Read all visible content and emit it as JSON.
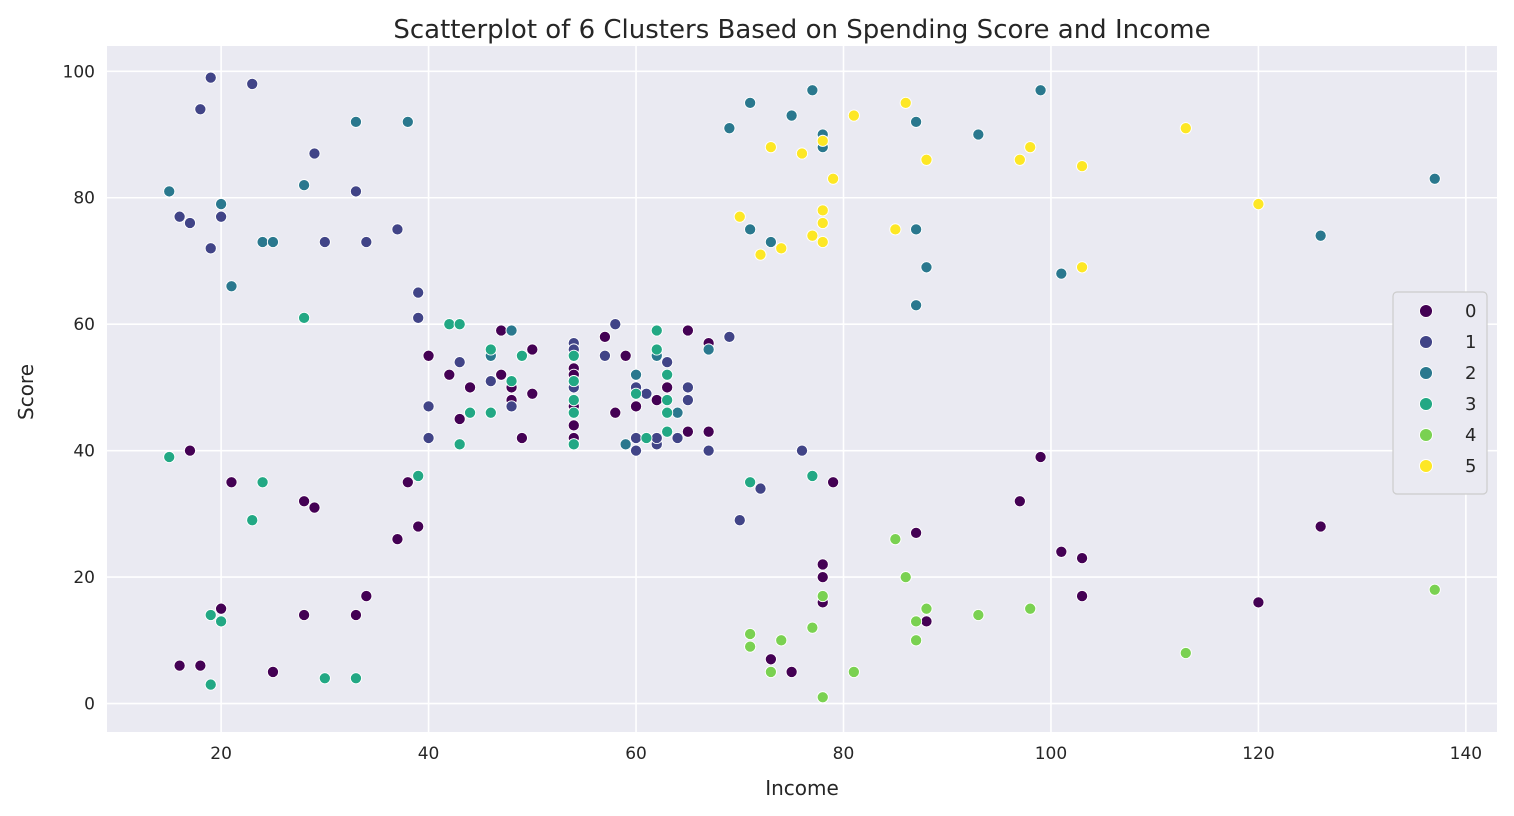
{
  "chart_data": {
    "type": "scatter",
    "title": "Scatterplot of 6 Clusters Based on Spending Score and Income",
    "xlabel": "Income",
    "ylabel": "Score",
    "xlim": [
      9,
      143
    ],
    "ylim": [
      -4.5,
      104
    ],
    "xticks": [
      20,
      40,
      60,
      80,
      100,
      120,
      140
    ],
    "yticks": [
      0,
      20,
      40,
      60,
      80,
      100
    ],
    "grid": true,
    "legend_placement": "center-right",
    "background": "#eaeaf2",
    "series": [
      {
        "name": "0",
        "color": "#440154",
        "points": [
          [
            16,
            6
          ],
          [
            17,
            40
          ],
          [
            18,
            6
          ],
          [
            20,
            15
          ],
          [
            21,
            35
          ],
          [
            25,
            5
          ],
          [
            28,
            14
          ],
          [
            28,
            32
          ],
          [
            29,
            31
          ],
          [
            33,
            14
          ],
          [
            34,
            17
          ],
          [
            37,
            26
          ],
          [
            38,
            35
          ],
          [
            39,
            28
          ],
          [
            40,
            55
          ],
          [
            42,
            52
          ],
          [
            43,
            45
          ],
          [
            44,
            50
          ],
          [
            47,
            52
          ],
          [
            47,
            59
          ],
          [
            48,
            48
          ],
          [
            48,
            50
          ],
          [
            48,
            47
          ],
          [
            49,
            42
          ],
          [
            50,
            49
          ],
          [
            50,
            56
          ],
          [
            54,
            53
          ],
          [
            54,
            52
          ],
          [
            54,
            44
          ],
          [
            54,
            42
          ],
          [
            54,
            41
          ],
          [
            54,
            51
          ],
          [
            54,
            47
          ],
          [
            57,
            58
          ],
          [
            58,
            46
          ],
          [
            59,
            55
          ],
          [
            60,
            47
          ],
          [
            62,
            48
          ],
          [
            63,
            50
          ],
          [
            65,
            59
          ],
          [
            65,
            43
          ],
          [
            67,
            57
          ],
          [
            67,
            43
          ],
          [
            73,
            7
          ],
          [
            75,
            5
          ],
          [
            78,
            16
          ],
          [
            78,
            22
          ],
          [
            78,
            20
          ],
          [
            79,
            35
          ],
          [
            87,
            27
          ],
          [
            88,
            13
          ],
          [
            97,
            32
          ],
          [
            99,
            39
          ],
          [
            101,
            24
          ],
          [
            103,
            23
          ],
          [
            103,
            17
          ],
          [
            120,
            16
          ],
          [
            126,
            28
          ]
        ]
      },
      {
        "name": "1",
        "color": "#414487",
        "points": [
          [
            16,
            77
          ],
          [
            17,
            76
          ],
          [
            18,
            94
          ],
          [
            19,
            99
          ],
          [
            19,
            72
          ],
          [
            20,
            77
          ],
          [
            23,
            98
          ],
          [
            29,
            87
          ],
          [
            30,
            73
          ],
          [
            33,
            81
          ],
          [
            34,
            73
          ],
          [
            37,
            75
          ],
          [
            39,
            65
          ],
          [
            39,
            61
          ],
          [
            40,
            47
          ],
          [
            40,
            42
          ],
          [
            43,
            54
          ],
          [
            46,
            51
          ],
          [
            48,
            47
          ],
          [
            54,
            57
          ],
          [
            54,
            56
          ],
          [
            54,
            50
          ],
          [
            57,
            55
          ],
          [
            58,
            60
          ],
          [
            60,
            50
          ],
          [
            60,
            42
          ],
          [
            60,
            40
          ],
          [
            61,
            49
          ],
          [
            62,
            41
          ],
          [
            62,
            42
          ],
          [
            63,
            54
          ],
          [
            64,
            42
          ],
          [
            65,
            50
          ],
          [
            65,
            48
          ],
          [
            67,
            40
          ],
          [
            69,
            58
          ],
          [
            70,
            29
          ],
          [
            72,
            34
          ],
          [
            76,
            40
          ]
        ]
      },
      {
        "name": "2",
        "color": "#2a788e",
        "points": [
          [
            15,
            81
          ],
          [
            20,
            79
          ],
          [
            21,
            66
          ],
          [
            24,
            73
          ],
          [
            25,
            73
          ],
          [
            28,
            82
          ],
          [
            33,
            92
          ],
          [
            38,
            92
          ],
          [
            46,
            55
          ],
          [
            48,
            59
          ],
          [
            59,
            41
          ],
          [
            60,
            52
          ],
          [
            62,
            55
          ],
          [
            64,
            46
          ],
          [
            67,
            56
          ],
          [
            69,
            91
          ],
          [
            71,
            95
          ],
          [
            71,
            75
          ],
          [
            73,
            73
          ],
          [
            75,
            93
          ],
          [
            77,
            97
          ],
          [
            78,
            90
          ],
          [
            78,
            88
          ],
          [
            87,
            92
          ],
          [
            87,
            75
          ],
          [
            87,
            63
          ],
          [
            88,
            69
          ],
          [
            93,
            90
          ],
          [
            99,
            97
          ],
          [
            101,
            68
          ],
          [
            126,
            74
          ],
          [
            137,
            83
          ]
        ]
      },
      {
        "name": "3",
        "color": "#22a884",
        "points": [
          [
            15,
            39
          ],
          [
            19,
            14
          ],
          [
            19,
            3
          ],
          [
            20,
            13
          ],
          [
            23,
            29
          ],
          [
            24,
            35
          ],
          [
            28,
            61
          ],
          [
            30,
            4
          ],
          [
            33,
            4
          ],
          [
            39,
            36
          ],
          [
            42,
            60
          ],
          [
            43,
            60
          ],
          [
            43,
            41
          ],
          [
            44,
            46
          ],
          [
            46,
            56
          ],
          [
            46,
            46
          ],
          [
            48,
            51
          ],
          [
            49,
            55
          ],
          [
            54,
            55
          ],
          [
            54,
            51
          ],
          [
            54,
            48
          ],
          [
            54,
            46
          ],
          [
            54,
            41
          ],
          [
            60,
            49
          ],
          [
            61,
            42
          ],
          [
            62,
            59
          ],
          [
            62,
            56
          ],
          [
            63,
            52
          ],
          [
            63,
            48
          ],
          [
            63,
            46
          ],
          [
            63,
            43
          ],
          [
            71,
            35
          ],
          [
            77,
            36
          ]
        ]
      },
      {
        "name": "4",
        "color": "#7ad151",
        "points": [
          [
            71,
            11
          ],
          [
            71,
            9
          ],
          [
            73,
            5
          ],
          [
            74,
            10
          ],
          [
            77,
            12
          ],
          [
            78,
            17
          ],
          [
            78,
            1
          ],
          [
            81,
            5
          ],
          [
            85,
            26
          ],
          [
            86,
            20
          ],
          [
            87,
            13
          ],
          [
            87,
            10
          ],
          [
            88,
            15
          ],
          [
            93,
            14
          ],
          [
            98,
            15
          ],
          [
            113,
            8
          ],
          [
            137,
            18
          ]
        ]
      },
      {
        "name": "5",
        "color": "#fde725",
        "points": [
          [
            70,
            77
          ],
          [
            72,
            71
          ],
          [
            73,
            88
          ],
          [
            74,
            72
          ],
          [
            76,
            87
          ],
          [
            77,
            74
          ],
          [
            78,
            89
          ],
          [
            78,
            78
          ],
          [
            78,
            76
          ],
          [
            78,
            73
          ],
          [
            79,
            83
          ],
          [
            81,
            93
          ],
          [
            85,
            75
          ],
          [
            86,
            95
          ],
          [
            88,
            86
          ],
          [
            97,
            86
          ],
          [
            98,
            88
          ],
          [
            103,
            85
          ],
          [
            103,
            69
          ],
          [
            113,
            91
          ],
          [
            120,
            79
          ]
        ]
      }
    ]
  }
}
